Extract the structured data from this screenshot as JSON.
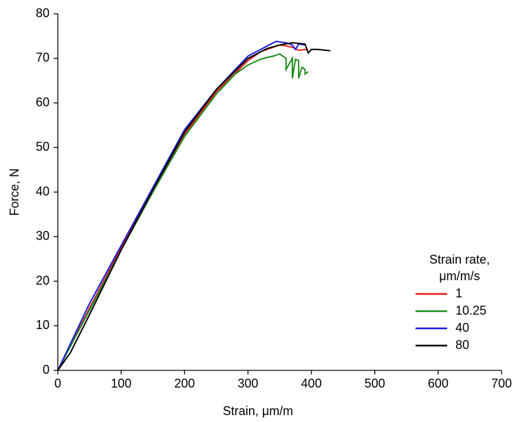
{
  "chart_data": {
    "type": "line",
    "xlabel": "Strain, μm/m",
    "ylabel": "Force, N",
    "legend_title": [
      "Strain rate,",
      "μm/m/s"
    ],
    "legend": "lower right",
    "xlim": [
      0,
      700
    ],
    "xticks": [
      0,
      100,
      200,
      300,
      400,
      500,
      600,
      700
    ],
    "ylim": [
      0,
      80
    ],
    "yticks": [
      0,
      10,
      20,
      30,
      40,
      50,
      60,
      70,
      80
    ],
    "series": [
      {
        "name": "1",
        "color": "#e31a1c",
        "x": [
          0,
          50,
          100,
          150,
          200,
          250,
          300,
          320,
          340,
          350,
          360,
          370,
          380,
          390,
          395
        ],
        "values": [
          0,
          14,
          27.5,
          40.5,
          53,
          62.5,
          69.5,
          71.5,
          72.5,
          73,
          72.8,
          72.5,
          71.8,
          72,
          71.8
        ]
      },
      {
        "name": "10.25",
        "color": "#1f8c1f",
        "x": [
          0,
          50,
          100,
          150,
          200,
          250,
          280,
          300,
          320,
          330,
          340,
          350,
          355,
          360,
          360,
          370,
          370,
          375,
          380,
          380,
          385,
          390,
          390,
          395
        ],
        "values": [
          0,
          13.5,
          27,
          40,
          52.5,
          62,
          66.5,
          68.5,
          69.8,
          70.2,
          70.5,
          71,
          70.5,
          70,
          67.5,
          70,
          65.5,
          69.8,
          69.5,
          65.5,
          68,
          67.5,
          66.5,
          67
        ]
      },
      {
        "name": "40",
        "color": "#1a1adc",
        "x": [
          0,
          50,
          100,
          150,
          200,
          250,
          300,
          320,
          340,
          345,
          360,
          370,
          375,
          380,
          390
        ],
        "values": [
          0,
          15,
          28,
          41,
          54,
          63,
          70.5,
          72,
          73.5,
          73.8,
          73.5,
          73,
          72,
          73.2,
          73
        ]
      },
      {
        "name": "80",
        "color": "#000000",
        "x": [
          0,
          20,
          50,
          100,
          150,
          200,
          250,
          300,
          330,
          350,
          370,
          390,
          395,
          400,
          410,
          430
        ],
        "values": [
          0,
          4,
          12.5,
          27,
          40.5,
          53.5,
          63,
          70,
          72.2,
          73,
          73.5,
          73.2,
          71.2,
          72,
          72,
          71.7
        ]
      }
    ]
  }
}
